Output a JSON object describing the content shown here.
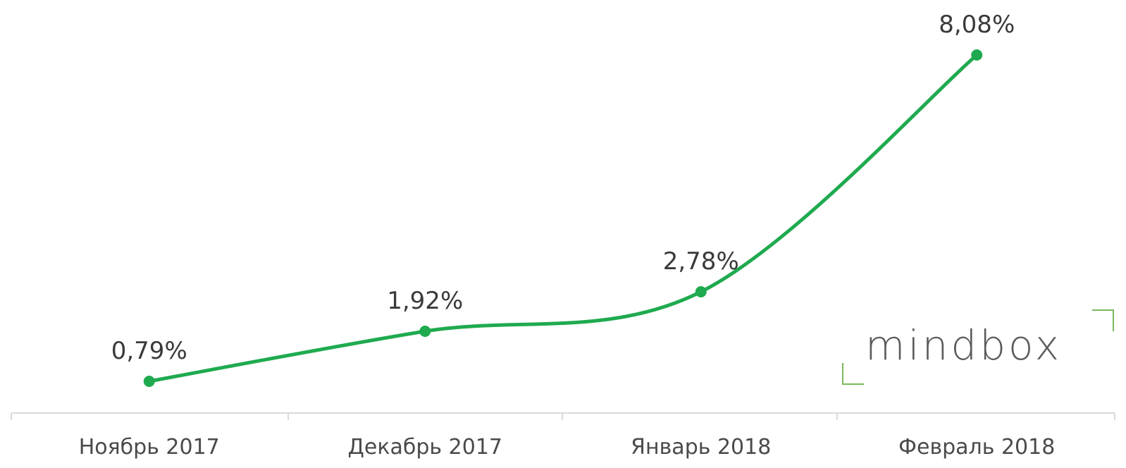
{
  "chart_data": {
    "type": "line",
    "categories": [
      "Ноябрь 2017",
      "Декабрь 2017",
      "Январь 2018",
      "Февраль 2018"
    ],
    "series": [
      {
        "values": [
          0.79,
          1.92,
          2.78,
          8.08
        ],
        "labels": [
          "0,79%",
          "1,92%",
          "2,78%",
          "8,08%"
        ]
      }
    ],
    "title": "",
    "xlabel": "",
    "ylabel": "",
    "grid": false,
    "legend": "none",
    "line_color": "#1faa4f"
  },
  "watermark": {
    "text": "mindbox",
    "accent_color": "#7ab85a"
  }
}
